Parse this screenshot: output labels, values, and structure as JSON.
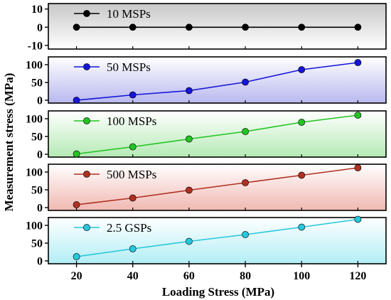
{
  "chart_data": {
    "type": "line",
    "xlabel": "Loading Stress (MPa)",
    "ylabel": "Measurement stress (MPa)",
    "x": [
      20,
      40,
      60,
      80,
      100,
      120
    ],
    "xlim": [
      10,
      130
    ],
    "x_ticks": [
      "20",
      "40",
      "60",
      "80",
      "100",
      "120"
    ],
    "grid": false,
    "legend_placement": "top-left",
    "panels": [
      {
        "name": "10 MSPs",
        "color": "#000000",
        "background": [
          "#c8c8c8",
          "#ffffff"
        ],
        "ylim": [
          -12,
          13
        ],
        "y_ticks": [
          -10,
          0,
          10
        ],
        "values": [
          0,
          0,
          0,
          0,
          0,
          0
        ]
      },
      {
        "name": "50 MSPs",
        "color": "#1515d8",
        "background": [
          "#ffffff",
          "#b8b8ef"
        ],
        "ylim": [
          -8,
          122
        ],
        "y_ticks": [
          0,
          50,
          100
        ],
        "values": [
          0,
          15,
          27,
          51,
          86,
          106
        ]
      },
      {
        "name": "100 MSPs",
        "color": "#22c422",
        "background": [
          "#ffffff",
          "#b5eab5"
        ],
        "ylim": [
          -8,
          122
        ],
        "y_ticks": [
          0,
          50,
          100
        ],
        "values": [
          1,
          21,
          43,
          64,
          90,
          110
        ]
      },
      {
        "name": "500 MSPs",
        "color": "#b03020",
        "background": [
          "#ffffff",
          "#f0b8b2"
        ],
        "ylim": [
          -8,
          122
        ],
        "y_ticks": [
          0,
          50,
          100
        ],
        "values": [
          8,
          27,
          49,
          70,
          91,
          112
        ]
      },
      {
        "name": "2.5 GSPs",
        "color": "#25c8dc",
        "background": [
          "#ffffff",
          "#b2eef5"
        ],
        "ylim": [
          -8,
          122
        ],
        "y_ticks": [
          0,
          50,
          100
        ],
        "values": [
          12,
          34,
          55,
          74,
          95,
          117
        ]
      }
    ]
  }
}
